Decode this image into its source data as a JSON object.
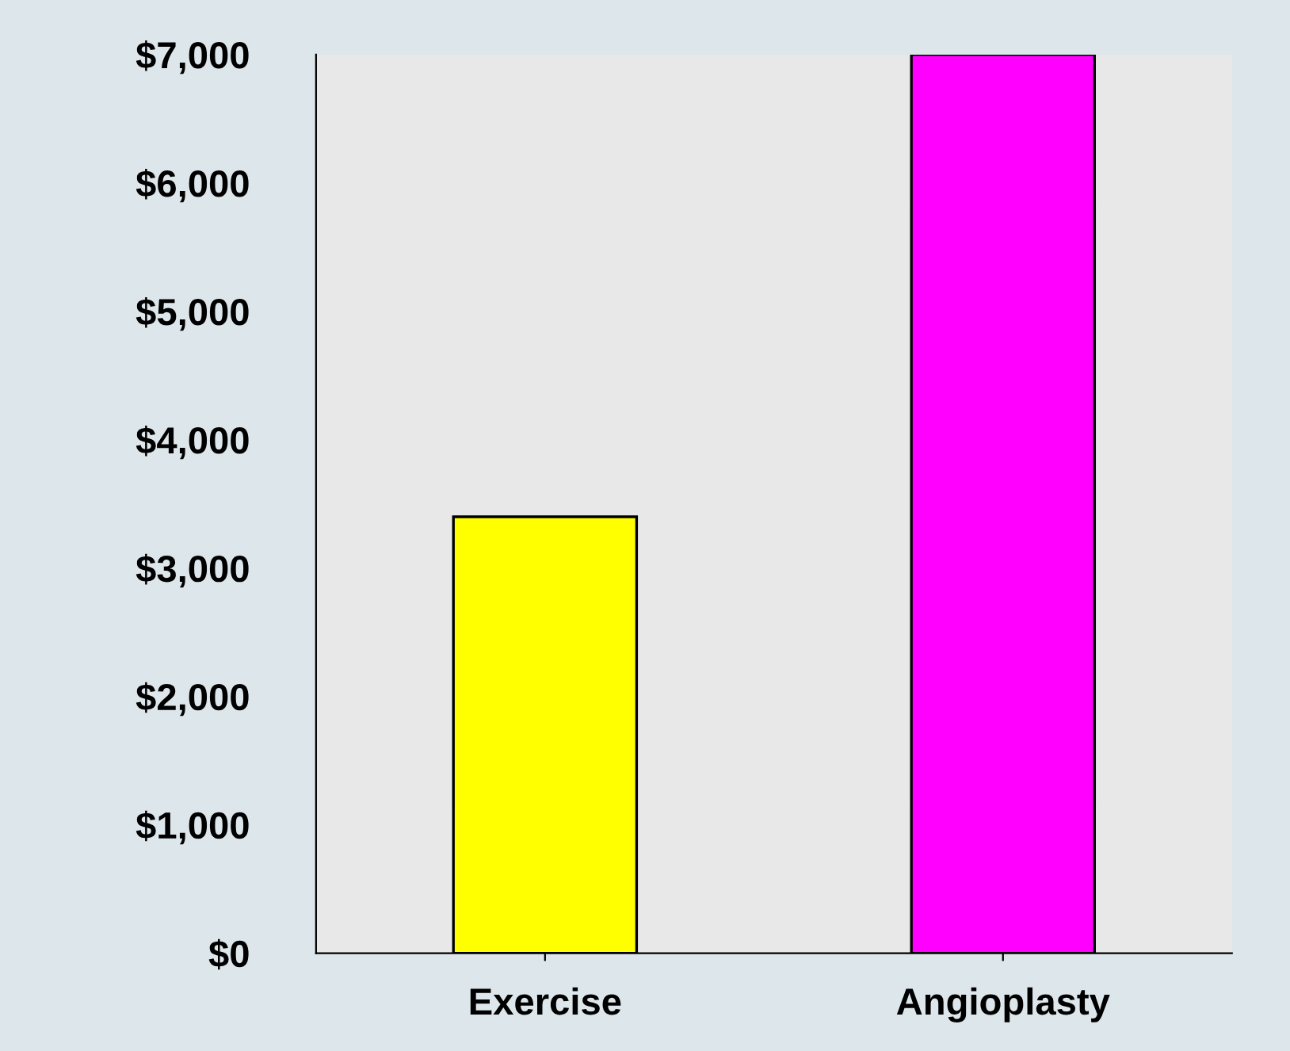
{
  "chart_data": {
    "type": "bar",
    "categories": [
      "Exercise",
      "Angioplasty"
    ],
    "values": [
      3400,
      7000
    ],
    "colors": [
      "#ffff00",
      "#ff00ff"
    ],
    "ylim": [
      0,
      7000
    ],
    "yticks": [
      {
        "value": 0,
        "label": "$0"
      },
      {
        "value": 1000,
        "label": "$1,000"
      },
      {
        "value": 2000,
        "label": "$2,000"
      },
      {
        "value": 3000,
        "label": "$3,000"
      },
      {
        "value": 4000,
        "label": "$4,000"
      },
      {
        "value": 5000,
        "label": "$5,000"
      },
      {
        "value": 6000,
        "label": "$6,000"
      },
      {
        "value": 7000,
        "label": "$7,000"
      }
    ],
    "grid": false
  }
}
